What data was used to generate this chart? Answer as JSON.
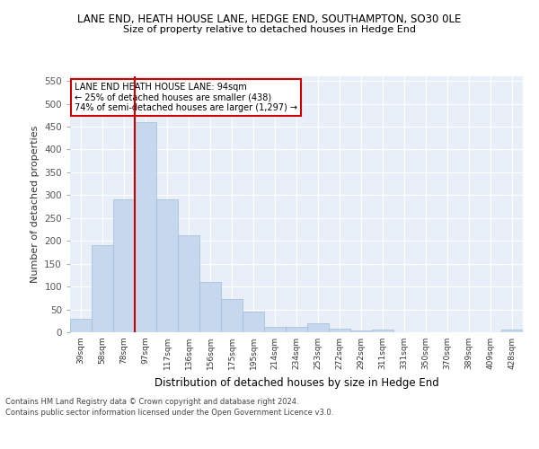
{
  "title1": "LANE END, HEATH HOUSE LANE, HEDGE END, SOUTHAMPTON, SO30 0LE",
  "title2": "Size of property relative to detached houses in Hedge End",
  "xlabel": "Distribution of detached houses by size in Hedge End",
  "ylabel": "Number of detached properties",
  "categories": [
    "39sqm",
    "58sqm",
    "78sqm",
    "97sqm",
    "117sqm",
    "136sqm",
    "156sqm",
    "175sqm",
    "195sqm",
    "214sqm",
    "234sqm",
    "253sqm",
    "272sqm",
    "292sqm",
    "311sqm",
    "331sqm",
    "350sqm",
    "370sqm",
    "389sqm",
    "409sqm",
    "428sqm"
  ],
  "values": [
    30,
    190,
    290,
    460,
    290,
    212,
    110,
    73,
    45,
    12,
    12,
    20,
    8,
    4,
    5,
    0,
    0,
    0,
    0,
    0,
    5
  ],
  "bar_color": "#c5d8ed",
  "bar_edge_color": "#a0bcd8",
  "red_line_index": 3,
  "annotation_text": "LANE END HEATH HOUSE LANE: 94sqm\n← 25% of detached houses are smaller (438)\n74% of semi-detached houses are larger (1,297) →",
  "annotation_box_color": "#ffffff",
  "annotation_box_edge": "#cc0000",
  "ylim": [
    0,
    560
  ],
  "yticks": [
    0,
    50,
    100,
    150,
    200,
    250,
    300,
    350,
    400,
    450,
    500,
    550
  ],
  "background_color": "#e8eff8",
  "grid_color": "#ffffff",
  "footer1": "Contains HM Land Registry data © Crown copyright and database right 2024.",
  "footer2": "Contains public sector information licensed under the Open Government Licence v3.0."
}
